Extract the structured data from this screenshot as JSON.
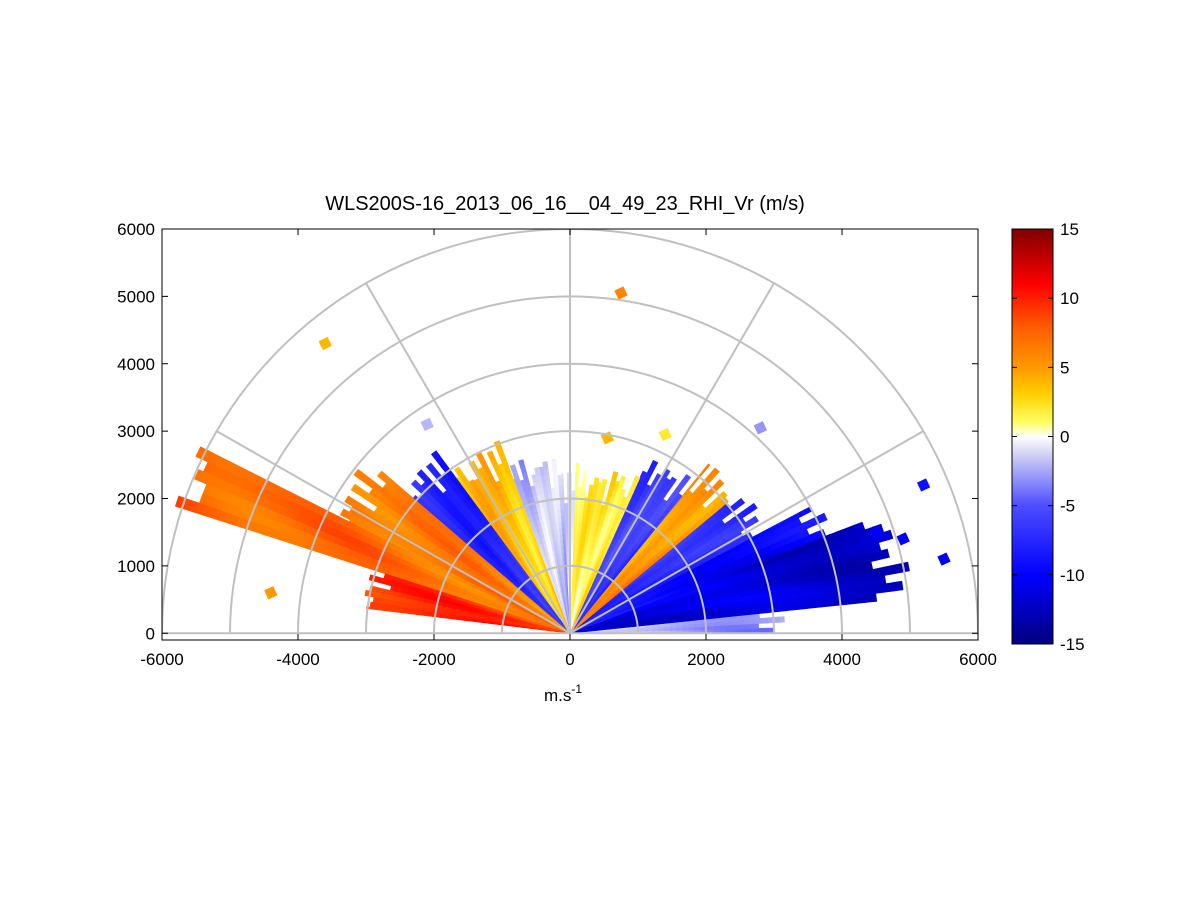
{
  "chart_data": {
    "type": "heatmap",
    "subtype": "polar-rhi-scan",
    "title": "WLS200S-16_2013_06_16__04_49_23_RHI_Vr (m/s)",
    "xlabel": "m.s",
    "xlabel_superscript": "-1",
    "ylabel": "",
    "xlim": [
      -6000,
      6000
    ],
    "ylim": [
      -100,
      6000
    ],
    "x_ticks": [
      "-6000",
      "-4000",
      "-2000",
      "0",
      "2000",
      "4000",
      "6000"
    ],
    "y_ticks": [
      "0",
      "1000",
      "2000",
      "3000",
      "4000",
      "5000",
      "6000"
    ],
    "polar_grid": {
      "range_rings": [
        1000,
        2000,
        3000,
        4000,
        5000,
        6000
      ],
      "spokes_deg": [
        0,
        30,
        60,
        90,
        120,
        150,
        180
      ]
    },
    "grid": true,
    "colorbar": {
      "min": -15,
      "max": 15,
      "ticks": [
        "15",
        "10",
        "5",
        "0",
        "-5",
        "-10",
        "-15"
      ],
      "colormap": [
        {
          "v": -15,
          "c": "#00007f"
        },
        {
          "v": -10,
          "c": "#0000ff"
        },
        {
          "v": -5,
          "c": "#4d4dff"
        },
        {
          "v": -1,
          "c": "#dcdcf5"
        },
        {
          "v": 0,
          "c": "#ffffff"
        },
        {
          "v": 1,
          "c": "#ffff66"
        },
        {
          "v": 3,
          "c": "#ffd200"
        },
        {
          "v": 5,
          "c": "#ff9900"
        },
        {
          "v": 8,
          "c": "#ff5a00"
        },
        {
          "v": 11,
          "c": "#ff0000"
        },
        {
          "v": 15,
          "c": "#7f0000"
        }
      ]
    },
    "sectors": [
      {
        "az_start": 0,
        "az_end": 6,
        "vr": -2,
        "max_range": 2900
      },
      {
        "az_start": 6,
        "az_end": 21,
        "vr": -11,
        "max_range": 4800
      },
      {
        "az_start": 21,
        "az_end": 28,
        "vr": -9,
        "max_range": 3900
      },
      {
        "az_start": 28,
        "az_end": 40,
        "vr": -7,
        "max_range": 3100
      },
      {
        "az_start": 40,
        "az_end": 51,
        "vr": 5,
        "max_range": 3000
      },
      {
        "az_start": 51,
        "az_end": 66,
        "vr": -6,
        "max_range": 2700
      },
      {
        "az_start": 66,
        "az_end": 75,
        "vr": 2,
        "max_range": 2350
      },
      {
        "az_start": 75,
        "az_end": 88,
        "vr": 1,
        "max_range": 2250
      },
      {
        "az_start": 88,
        "az_end": 93,
        "vr": 0,
        "max_range": 2200
      },
      {
        "az_start": 93,
        "az_end": 110,
        "vr": -1.5,
        "max_range": 2450
      },
      {
        "az_start": 110,
        "az_end": 126,
        "vr": 3,
        "max_range": 2800
      },
      {
        "az_start": 126,
        "az_end": 139,
        "vr": -7,
        "max_range": 3100
      },
      {
        "az_start": 139,
        "az_end": 153,
        "vr": 6,
        "max_range": 3700
      },
      {
        "az_start": 153,
        "az_end": 162,
        "vr": 6.5,
        "max_range": 5900
      },
      {
        "az_start": 162,
        "az_end": 173,
        "vr": 9,
        "max_range": 2950
      }
    ],
    "speckles": [
      {
        "x": 5200,
        "y": 2200,
        "vr": -9
      },
      {
        "x": 4500,
        "y": 1500,
        "vr": -10
      },
      {
        "x": 4900,
        "y": 1400,
        "vr": -10
      },
      {
        "x": 5500,
        "y": 1100,
        "vr": -10
      },
      {
        "x": 2800,
        "y": 3050,
        "vr": -3
      },
      {
        "x": 1400,
        "y": 2950,
        "vr": 2
      },
      {
        "x": 750,
        "y": 5050,
        "vr": 6
      },
      {
        "x": 550,
        "y": 2900,
        "vr": 4
      },
      {
        "x": -2100,
        "y": 3100,
        "vr": -2
      },
      {
        "x": -3600,
        "y": 4300,
        "vr": 4
      },
      {
        "x": -4400,
        "y": 600,
        "vr": 5
      }
    ]
  }
}
